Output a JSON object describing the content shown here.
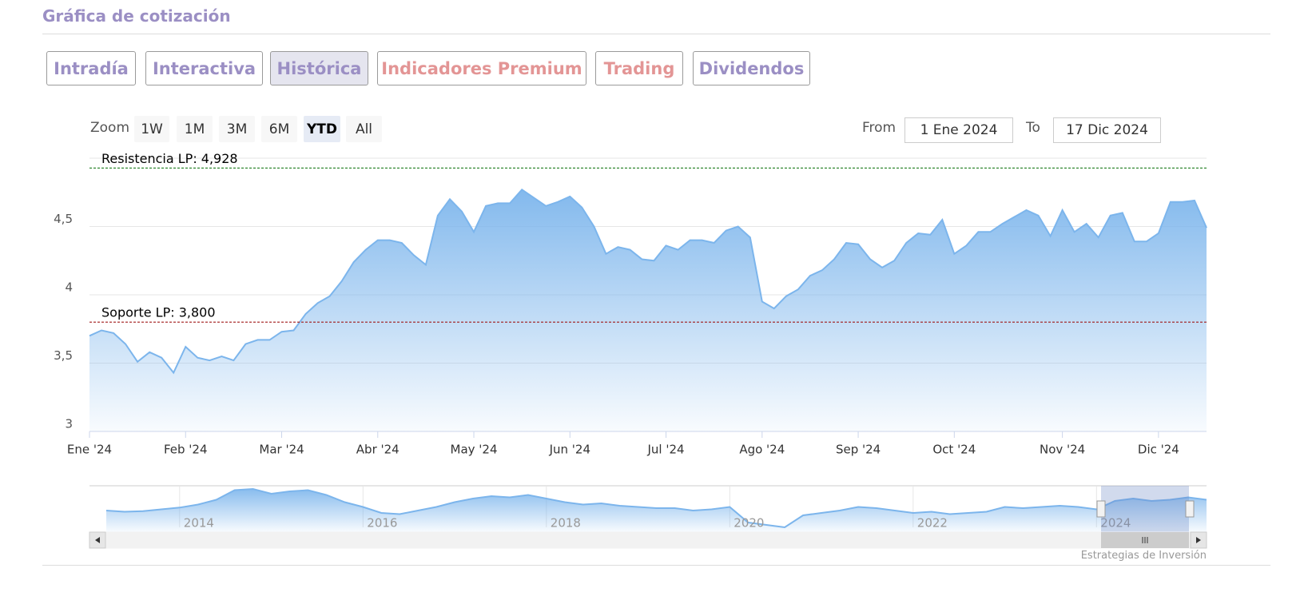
{
  "header": {
    "title": "Gráfica de cotización"
  },
  "tabs": [
    {
      "label": "Intradía",
      "color": "#9b8fc4"
    },
    {
      "label": "Interactiva",
      "color": "#9b8fc4"
    },
    {
      "label": "Histórica",
      "color": "#9b8fc4"
    },
    {
      "label": "Indicadores Premium",
      "color": "#e39595"
    },
    {
      "label": "Trading",
      "color": "#e39595"
    },
    {
      "label": "Dividendos",
      "color": "#9b8fc4"
    }
  ],
  "active_tab": 2,
  "zoom": {
    "label": "Zoom",
    "buttons": [
      "1W",
      "1M",
      "3M",
      "6M",
      "YTD",
      "All"
    ],
    "selected": 4
  },
  "range": {
    "from_label": "From",
    "from": "1 Ene 2024",
    "to_label": "To",
    "to": "17 Dic 2024"
  },
  "chart_data": [
    {
      "type": "area",
      "color": "#7cb5ec",
      "categories": [
        "Ene '24",
        null,
        null,
        null,
        null,
        null,
        null,
        null,
        "Feb '24",
        null,
        null,
        null,
        null,
        null,
        null,
        null,
        "Mar '24",
        null,
        null,
        null,
        null,
        null,
        null,
        null,
        "Abr '24",
        null,
        null,
        null,
        null,
        null,
        null,
        null,
        "May '24",
        null,
        null,
        null,
        null,
        null,
        null,
        null,
        "Jun '24",
        null,
        null,
        null,
        null,
        null,
        null,
        null,
        "Jul '24",
        null,
        null,
        null,
        null,
        null,
        null,
        null,
        "Ago '24",
        null,
        null,
        null,
        null,
        null,
        null,
        null,
        "Sep '24",
        null,
        null,
        null,
        null,
        null,
        null,
        null,
        "Oct '24",
        null,
        null,
        null,
        null,
        null,
        null,
        null,
        null,
        "Nov '24",
        null,
        null,
        null,
        null,
        null,
        null,
        null,
        "Dic '24",
        null,
        null,
        null,
        null
      ],
      "values": [
        3.7,
        3.74,
        3.72,
        3.64,
        3.51,
        3.58,
        3.54,
        3.43,
        3.62,
        3.54,
        3.52,
        3.55,
        3.52,
        3.64,
        3.67,
        3.67,
        3.73,
        3.74,
        3.86,
        3.94,
        3.99,
        4.1,
        4.24,
        4.33,
        4.4,
        4.4,
        4.38,
        4.29,
        4.22,
        4.58,
        4.7,
        4.61,
        4.46,
        4.65,
        4.67,
        4.67,
        4.77,
        4.71,
        4.65,
        4.68,
        4.72,
        4.64,
        4.5,
        4.3,
        4.35,
        4.33,
        4.26,
        4.25,
        4.36,
        4.33,
        4.4,
        4.4,
        4.38,
        4.47,
        4.5,
        4.42,
        3.95,
        3.9,
        3.99,
        4.04,
        4.14,
        4.18,
        4.26,
        4.38,
        4.37,
        4.26,
        4.2,
        4.25,
        4.38,
        4.45,
        4.44,
        4.55,
        4.3,
        4.36,
        4.46,
        4.46,
        4.52,
        4.57,
        4.62,
        4.58,
        4.43,
        4.62,
        4.46,
        4.52,
        4.42,
        4.58,
        4.6,
        4.39,
        4.39,
        4.45,
        4.68,
        4.68,
        4.69,
        4.49
      ],
      "ylim": [
        3,
        5
      ],
      "yticks": [
        3,
        {
          "value": 3.5,
          "label": "3,5"
        },
        4,
        {
          "value": 4.5,
          "label": "4,5"
        }
      ],
      "grid": true,
      "annotations": [
        {
          "label": "Resistencia LP: 4,928",
          "value": 4.928,
          "color": "#1a7a1a"
        },
        {
          "label": "Soporte LP: 3,800",
          "value": 3.8,
          "color": "#a01818"
        }
      ]
    },
    {
      "type": "area",
      "color": "#7cb5ec",
      "categories": [
        null,
        null,
        null,
        null,
        "2014",
        null,
        null,
        null,
        null,
        null,
        null,
        null,
        null,
        null,
        "2016",
        null,
        null,
        null,
        null,
        null,
        null,
        null,
        null,
        null,
        "2018",
        null,
        null,
        null,
        null,
        null,
        null,
        null,
        null,
        null,
        "2020",
        null,
        null,
        null,
        null,
        null,
        null,
        null,
        null,
        null,
        "2022",
        null,
        null,
        null,
        null,
        null,
        null,
        null,
        null,
        null,
        "2024",
        null,
        null,
        null,
        null,
        null,
        null
      ],
      "values": [
        3.6,
        3.5,
        3.55,
        3.7,
        3.85,
        4.1,
        4.5,
        5.3,
        5.4,
        5.0,
        5.2,
        5.3,
        4.9,
        4.3,
        3.9,
        3.4,
        3.3,
        3.6,
        3.9,
        4.3,
        4.6,
        4.8,
        4.7,
        4.9,
        4.6,
        4.3,
        4.1,
        4.2,
        4.0,
        3.9,
        3.8,
        3.8,
        3.6,
        3.7,
        3.9,
        2.6,
        2.4,
        2.2,
        3.2,
        3.4,
        3.6,
        3.9,
        3.8,
        3.6,
        3.4,
        3.5,
        3.3,
        3.4,
        3.5,
        3.9,
        3.8,
        3.9,
        4.0,
        3.9,
        3.7,
        4.4,
        4.6,
        4.4,
        4.5,
        4.7,
        4.5
      ]
    }
  ],
  "credit": "Estrategias de Inversión"
}
